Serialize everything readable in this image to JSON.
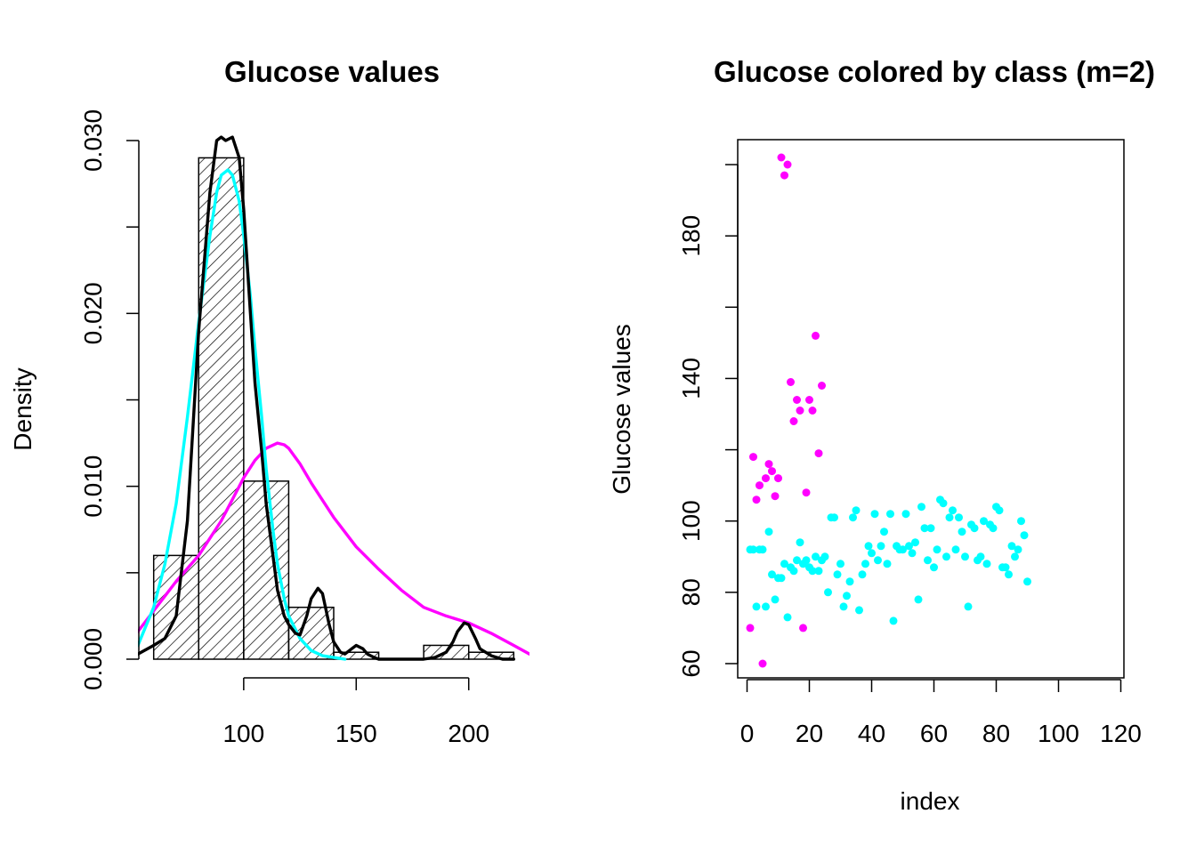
{
  "chart_data": [
    {
      "type": "bar",
      "subtype": "histogram-with-density-curves",
      "title": "Glucose values",
      "xlabel": "",
      "ylabel": "Density",
      "xlim": [
        53,
        227
      ],
      "ylim": [
        0,
        0.03
      ],
      "x_ticks": [
        100,
        150,
        200
      ],
      "y_ticks": [
        0.0,
        0.01,
        0.02,
        0.03
      ],
      "y_tick_labels": [
        "0.000",
        "0.010",
        "0.020",
        "0.030"
      ],
      "bin_edges": [
        60,
        80,
        100,
        120,
        140,
        160,
        180,
        200,
        220
      ],
      "values": [
        0.006,
        0.029,
        0.0103,
        0.003,
        0.0004,
        0.0,
        0.0008,
        0.0004
      ],
      "series": [
        {
          "color": "#000000",
          "x": [
            53,
            60,
            65,
            70,
            75,
            80,
            85,
            88,
            90,
            92,
            95,
            98,
            100,
            103,
            105,
            108,
            110,
            113,
            115,
            118,
            120,
            123,
            125,
            128,
            130,
            133,
            135,
            138,
            140,
            143,
            145,
            148,
            150,
            153,
            155,
            158,
            160,
            165,
            170,
            175,
            180,
            185,
            190,
            193,
            195,
            198,
            200,
            203,
            205,
            210,
            215,
            220
          ],
          "y": [
            0.0003,
            0.0008,
            0.0012,
            0.0025,
            0.008,
            0.019,
            0.027,
            0.03,
            0.0302,
            0.03,
            0.0302,
            0.029,
            0.026,
            0.02,
            0.016,
            0.012,
            0.009,
            0.006,
            0.004,
            0.0025,
            0.002,
            0.0015,
            0.0014,
            0.0025,
            0.0035,
            0.0041,
            0.0038,
            0.002,
            0.001,
            0.0004,
            0.0003,
            0.0006,
            0.0008,
            0.0006,
            0.0003,
            0.0001,
            0.0,
            0.0,
            0.0,
            0.0,
            0.0,
            0.0001,
            0.0004,
            0.001,
            0.0016,
            0.0021,
            0.002,
            0.0012,
            0.0006,
            0.0002,
            0.0,
            0.0
          ]
        },
        {
          "color": "#00FFFF",
          "x": [
            53,
            60,
            65,
            70,
            75,
            80,
            85,
            88,
            90,
            93,
            95,
            98,
            100,
            103,
            105,
            108,
            110,
            113,
            115,
            118,
            120,
            125,
            130,
            135,
            140,
            145
          ],
          "y": [
            0.0008,
            0.003,
            0.0055,
            0.009,
            0.014,
            0.0195,
            0.0245,
            0.027,
            0.028,
            0.0283,
            0.028,
            0.0265,
            0.0245,
            0.021,
            0.018,
            0.014,
            0.011,
            0.0075,
            0.0055,
            0.0035,
            0.0025,
            0.0012,
            0.0005,
            0.0002,
            0.0001,
            0.0
          ]
        },
        {
          "color": "#FF00FF",
          "x": [
            53,
            60,
            70,
            80,
            90,
            100,
            105,
            110,
            115,
            118,
            120,
            125,
            130,
            140,
            150,
            160,
            170,
            180,
            190,
            200,
            210,
            220,
            227
          ],
          "y": [
            0.0016,
            0.0028,
            0.0045,
            0.006,
            0.008,
            0.0105,
            0.0115,
            0.0122,
            0.0125,
            0.0124,
            0.0122,
            0.0113,
            0.0102,
            0.0082,
            0.0065,
            0.0052,
            0.004,
            0.003,
            0.0025,
            0.0021,
            0.0015,
            0.0008,
            0.0003
          ]
        }
      ]
    },
    {
      "type": "scatter",
      "title": "Glucose colored by class (m=2)",
      "xlabel": "index",
      "ylabel": "Glucose values",
      "xlim": [
        -3,
        121
      ],
      "ylim": [
        56,
        207
      ],
      "x_ticks": [
        0,
        20,
        40,
        60,
        80,
        100,
        120
      ],
      "y_ticks": [
        60,
        80,
        100,
        140,
        180
      ],
      "y_tick_marks": [
        60,
        80,
        100,
        120,
        140,
        160,
        180,
        200
      ],
      "series": [
        {
          "color": "#00FFFF",
          "points": [
            [
              1,
              92
            ],
            [
              2,
              92
            ],
            [
              3,
              76
            ],
            [
              4,
              92
            ],
            [
              5,
              92
            ],
            [
              6,
              76
            ],
            [
              7,
              97
            ],
            [
              8,
              85
            ],
            [
              9,
              78
            ],
            [
              10,
              84
            ],
            [
              11,
              84
            ],
            [
              12,
              88
            ],
            [
              13,
              73
            ],
            [
              14,
              87
            ],
            [
              15,
              86
            ],
            [
              16,
              89
            ],
            [
              17,
              94
            ],
            [
              18,
              88
            ],
            [
              19,
              89
            ],
            [
              20,
              87
            ],
            [
              21,
              86
            ],
            [
              22,
              90
            ],
            [
              23,
              86
            ],
            [
              24,
              89
            ],
            [
              25,
              90
            ],
            [
              26,
              80
            ],
            [
              27,
              101
            ],
            [
              28,
              101
            ],
            [
              29,
              85
            ],
            [
              30,
              88
            ],
            [
              31,
              76
            ],
            [
              32,
              79
            ],
            [
              33,
              83
            ],
            [
              34,
              101
            ],
            [
              35,
              103
            ],
            [
              36,
              75
            ],
            [
              37,
              85
            ],
            [
              38,
              88
            ],
            [
              39,
              93
            ],
            [
              40,
              91
            ],
            [
              41,
              102
            ],
            [
              42,
              89
            ],
            [
              43,
              93
            ],
            [
              44,
              97
            ],
            [
              45,
              88
            ],
            [
              46,
              102
            ],
            [
              47,
              72
            ],
            [
              48,
              93
            ],
            [
              49,
              92
            ],
            [
              50,
              92
            ],
            [
              51,
              102
            ],
            [
              52,
              93
            ],
            [
              53,
              91
            ],
            [
              54,
              94
            ],
            [
              55,
              78
            ],
            [
              56,
              104
            ],
            [
              57,
              98
            ],
            [
              58,
              89
            ],
            [
              59,
              98
            ],
            [
              60,
              87
            ],
            [
              61,
              92
            ],
            [
              62,
              106
            ],
            [
              63,
              105
            ],
            [
              64,
              90
            ],
            [
              65,
              101
            ],
            [
              66,
              103
            ],
            [
              67,
              92
            ],
            [
              68,
              101
            ],
            [
              69,
              97
            ],
            [
              70,
              90
            ],
            [
              71,
              76
            ],
            [
              72,
              99
            ],
            [
              73,
              98
            ],
            [
              74,
              89
            ],
            [
              75,
              90
            ],
            [
              76,
              100
            ],
            [
              77,
              88
            ],
            [
              78,
              99
            ],
            [
              79,
              98
            ],
            [
              80,
              104
            ],
            [
              81,
              103
            ],
            [
              82,
              87
            ],
            [
              83,
              87
            ],
            [
              84,
              85
            ],
            [
              85,
              93
            ],
            [
              86,
              90
            ],
            [
              87,
              92
            ],
            [
              88,
              100
            ],
            [
              89,
              96
            ],
            [
              90,
              83
            ]
          ]
        },
        {
          "color": "#FF00FF",
          "points": [
            [
              1,
              70
            ],
            [
              2,
              118
            ],
            [
              3,
              106
            ],
            [
              4,
              110
            ],
            [
              5,
              60
            ],
            [
              6,
              112
            ],
            [
              7,
              116
            ],
            [
              8,
              114
            ],
            [
              9,
              107
            ],
            [
              10,
              112
            ],
            [
              11,
              202
            ],
            [
              12,
              197
            ],
            [
              13,
              200
            ],
            [
              14,
              139
            ],
            [
              15,
              128
            ],
            [
              16,
              134
            ],
            [
              17,
              131
            ],
            [
              18,
              70
            ],
            [
              19,
              108
            ],
            [
              20,
              134
            ],
            [
              21,
              131
            ],
            [
              22,
              152
            ],
            [
              23,
              119
            ],
            [
              24,
              138
            ]
          ]
        }
      ]
    }
  ]
}
